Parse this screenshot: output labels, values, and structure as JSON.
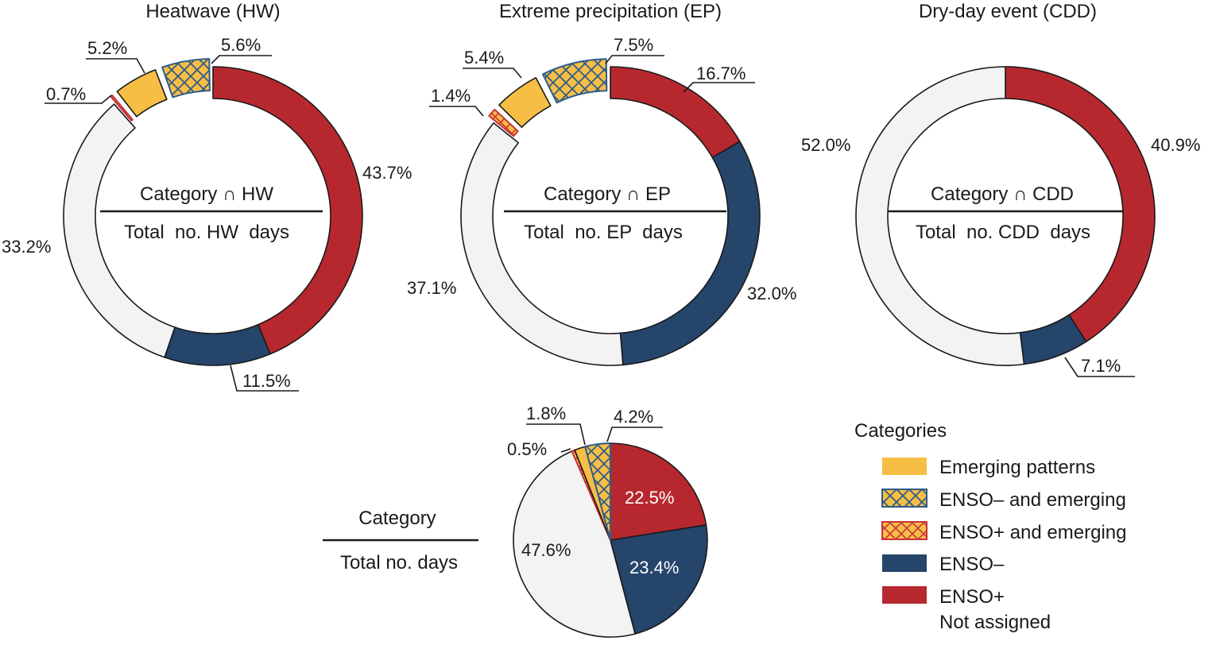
{
  "colors": {
    "emerging": "#F7BE45",
    "enso_minus": "#25456B",
    "enso_plus": "#B7282E",
    "not_assigned": "#F3F3F3",
    "hatch_minus": "#2E5C8A",
    "hatch_plus": "#C8333A"
  },
  "chart_data": [
    {
      "type": "pie",
      "style": "donut",
      "title": "Heatwave (HW)",
      "fraction_numerator": "Category ∩ HW",
      "fraction_denominator": "Total  no. HW  days",
      "slices": [
        {
          "category": "ENSO+",
          "value": 43.7,
          "label": "43.7%"
        },
        {
          "category": "ENSO−",
          "value": 11.5,
          "label": "11.5%"
        },
        {
          "category": "Not assigned",
          "value": 33.2,
          "label": "33.2%"
        },
        {
          "category": "ENSO+ and emerging",
          "value": 0.7,
          "label": "0.7%"
        },
        {
          "category": "Emerging patterns",
          "value": 5.2,
          "label": "5.2%"
        },
        {
          "category": "ENSO− and emerging",
          "value": 5.6,
          "label": "5.6%"
        }
      ]
    },
    {
      "type": "pie",
      "style": "donut",
      "title": "Extreme precipitation (EP)",
      "fraction_numerator": "Category ∩ EP",
      "fraction_denominator": "Total  no. EP  days",
      "slices": [
        {
          "category": "ENSO+",
          "value": 16.7,
          "label": "16.7%"
        },
        {
          "category": "ENSO−",
          "value": 32.0,
          "label": "32.0%"
        },
        {
          "category": "Not assigned",
          "value": 37.1,
          "label": "37.1%"
        },
        {
          "category": "ENSO+ and emerging",
          "value": 1.4,
          "label": "1.4%"
        },
        {
          "category": "Emerging patterns",
          "value": 5.4,
          "label": "5.4%"
        },
        {
          "category": "ENSO− and emerging",
          "value": 7.5,
          "label": "7.5%"
        }
      ]
    },
    {
      "type": "pie",
      "style": "donut",
      "title": "Dry-day event (CDD)",
      "fraction_numerator": "Category ∩ CDD",
      "fraction_denominator": "Total  no. CDD  days",
      "slices": [
        {
          "category": "ENSO+",
          "value": 40.9,
          "label": "40.9%"
        },
        {
          "category": "ENSO−",
          "value": 7.1,
          "label": "7.1%"
        },
        {
          "category": "Not assigned",
          "value": 52.0,
          "label": "52.0%"
        }
      ]
    },
    {
      "type": "pie",
      "style": "pie",
      "title": "",
      "fraction_numerator": "Category",
      "fraction_denominator": "Total no. days",
      "slices": [
        {
          "category": "ENSO+",
          "value": 22.5,
          "label": "22.5%"
        },
        {
          "category": "ENSO−",
          "value": 23.4,
          "label": "23.4%"
        },
        {
          "category": "Not assigned",
          "value": 47.6,
          "label": "47.6%"
        },
        {
          "category": "ENSO+ and emerging",
          "value": 0.5,
          "label": "0.5%"
        },
        {
          "category": "Emerging patterns",
          "value": 1.8,
          "label": "1.8%"
        },
        {
          "category": "ENSO− and emerging",
          "value": 4.2,
          "label": "4.2%"
        }
      ]
    }
  ],
  "legend": {
    "title": "Categories",
    "items": [
      {
        "key": "emerging",
        "label": "Emerging patterns"
      },
      {
        "key": "enso_minus_emerging",
        "label": "ENSO– and emerging"
      },
      {
        "key": "enso_plus_emerging",
        "label": "ENSO+ and emerging"
      },
      {
        "key": "enso_minus",
        "label": "ENSO–"
      },
      {
        "key": "enso_plus",
        "label": "ENSO+"
      },
      {
        "key": "not_assigned",
        "label": "Not assigned"
      }
    ]
  }
}
